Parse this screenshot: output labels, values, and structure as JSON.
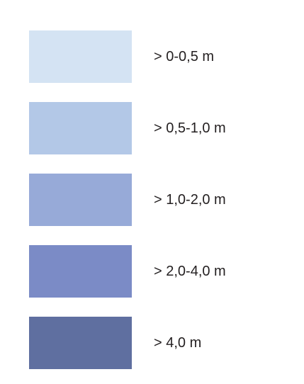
{
  "legend": {
    "items": [
      {
        "label": "> 0-0,5 m",
        "color": "#d4e3f3"
      },
      {
        "label": "> 0,5-1,0 m",
        "color": "#b3c8e7"
      },
      {
        "label": "> 1,0-2,0 m",
        "color": "#97aad8"
      },
      {
        "label": "> 2,0-4,0 m",
        "color": "#7b8bc6"
      },
      {
        "label": "> 4,0 m",
        "color": "#5f6fa0"
      }
    ]
  }
}
